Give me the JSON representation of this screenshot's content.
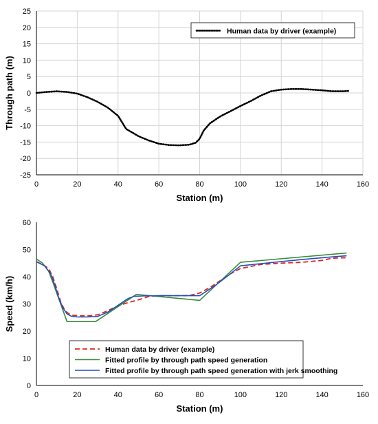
{
  "chart_data": [
    {
      "type": "line",
      "xlabel": "Station (m)",
      "ylabel": "Through path (m)",
      "xlim": [
        0,
        160
      ],
      "ylim": [
        -25,
        25
      ],
      "x_ticks": [
        0,
        20,
        40,
        60,
        80,
        100,
        120,
        140,
        160
      ],
      "y_ticks": [
        25,
        20,
        15,
        10,
        5,
        0,
        -5,
        -10,
        -15,
        -20,
        -25
      ],
      "grid": true,
      "legend_position": "top-right",
      "series": [
        {
          "name": "Human data by driver (example)",
          "color": "#000000",
          "style": "dotted",
          "x": [
            0,
            5,
            10,
            15,
            20,
            25,
            30,
            35,
            40,
            42,
            44,
            50,
            55,
            60,
            65,
            70,
            75,
            78,
            80,
            82,
            85,
            90,
            95,
            100,
            105,
            110,
            115,
            120,
            125,
            130,
            135,
            140,
            145,
            150,
            153
          ],
          "y": [
            0,
            0.3,
            0.5,
            0.3,
            -0.2,
            -1.3,
            -2.7,
            -4.5,
            -7.0,
            -9.0,
            -11.0,
            -13.2,
            -14.5,
            -15.5,
            -15.9,
            -16.0,
            -15.8,
            -15.2,
            -14.0,
            -11.5,
            -9.3,
            -7.2,
            -5.6,
            -4.0,
            -2.5,
            -0.8,
            0.5,
            1.0,
            1.2,
            1.2,
            1.0,
            0.8,
            0.5,
            0.5,
            0.6
          ]
        }
      ]
    },
    {
      "type": "line",
      "xlabel": "Station (m)",
      "ylabel": "Speed (km/h)",
      "xlim": [
        0,
        160
      ],
      "ylim": [
        0,
        60
      ],
      "x_ticks": [
        0,
        20,
        40,
        60,
        80,
        100,
        120,
        140,
        160
      ],
      "y_ticks": [
        60,
        50,
        40,
        30,
        20,
        10,
        0
      ],
      "grid": false,
      "legend_position": "bottom-center",
      "series": [
        {
          "name": "Human data by driver (example)",
          "color": "#e0241b",
          "style": "dashed",
          "x": [
            0,
            3,
            6,
            8,
            10,
            12,
            14,
            16,
            18,
            22,
            26,
            30,
            35,
            40,
            45,
            50,
            55,
            60,
            65,
            70,
            75,
            80,
            85,
            90,
            95,
            100,
            110,
            120,
            130,
            140,
            145,
            152
          ],
          "y": [
            45.5,
            44.5,
            43.0,
            40.0,
            35.5,
            30.5,
            27.5,
            26.3,
            25.8,
            25.6,
            25.6,
            26.0,
            27.5,
            29.3,
            30.5,
            31.5,
            32.7,
            33.0,
            33.0,
            33.0,
            33.1,
            34.0,
            36.0,
            38.5,
            41.0,
            43.0,
            44.5,
            45.0,
            45.3,
            46.0,
            46.8,
            47.0
          ]
        },
        {
          "name": "Fitted profile by through path speed generation",
          "color": "#3a8a3a",
          "style": "solid",
          "x": [
            0,
            3,
            6,
            8,
            15,
            29,
            49,
            80,
            100,
            152
          ],
          "y": [
            46.5,
            45.0,
            42.0,
            38.0,
            23.5,
            23.5,
            33.5,
            31.3,
            45.3,
            48.7
          ]
        },
        {
          "name": "Fitted profile by through path speed generation with jerk smoothing",
          "color": "#1f4fbf",
          "style": "solid",
          "x": [
            0,
            4,
            7,
            9,
            11,
            13,
            15,
            17,
            20,
            25,
            30,
            35,
            40,
            45,
            48,
            52,
            60,
            70,
            80,
            88,
            95,
            100,
            115,
            130,
            145,
            152
          ],
          "y": [
            45.5,
            44.0,
            41.0,
            37.0,
            32.0,
            28.5,
            26.3,
            25.5,
            25.2,
            25.2,
            25.4,
            27.0,
            29.5,
            32.0,
            32.8,
            32.9,
            33.0,
            33.0,
            33.0,
            37.0,
            41.0,
            44.0,
            45.2,
            46.3,
            47.3,
            47.7
          ]
        }
      ]
    }
  ]
}
